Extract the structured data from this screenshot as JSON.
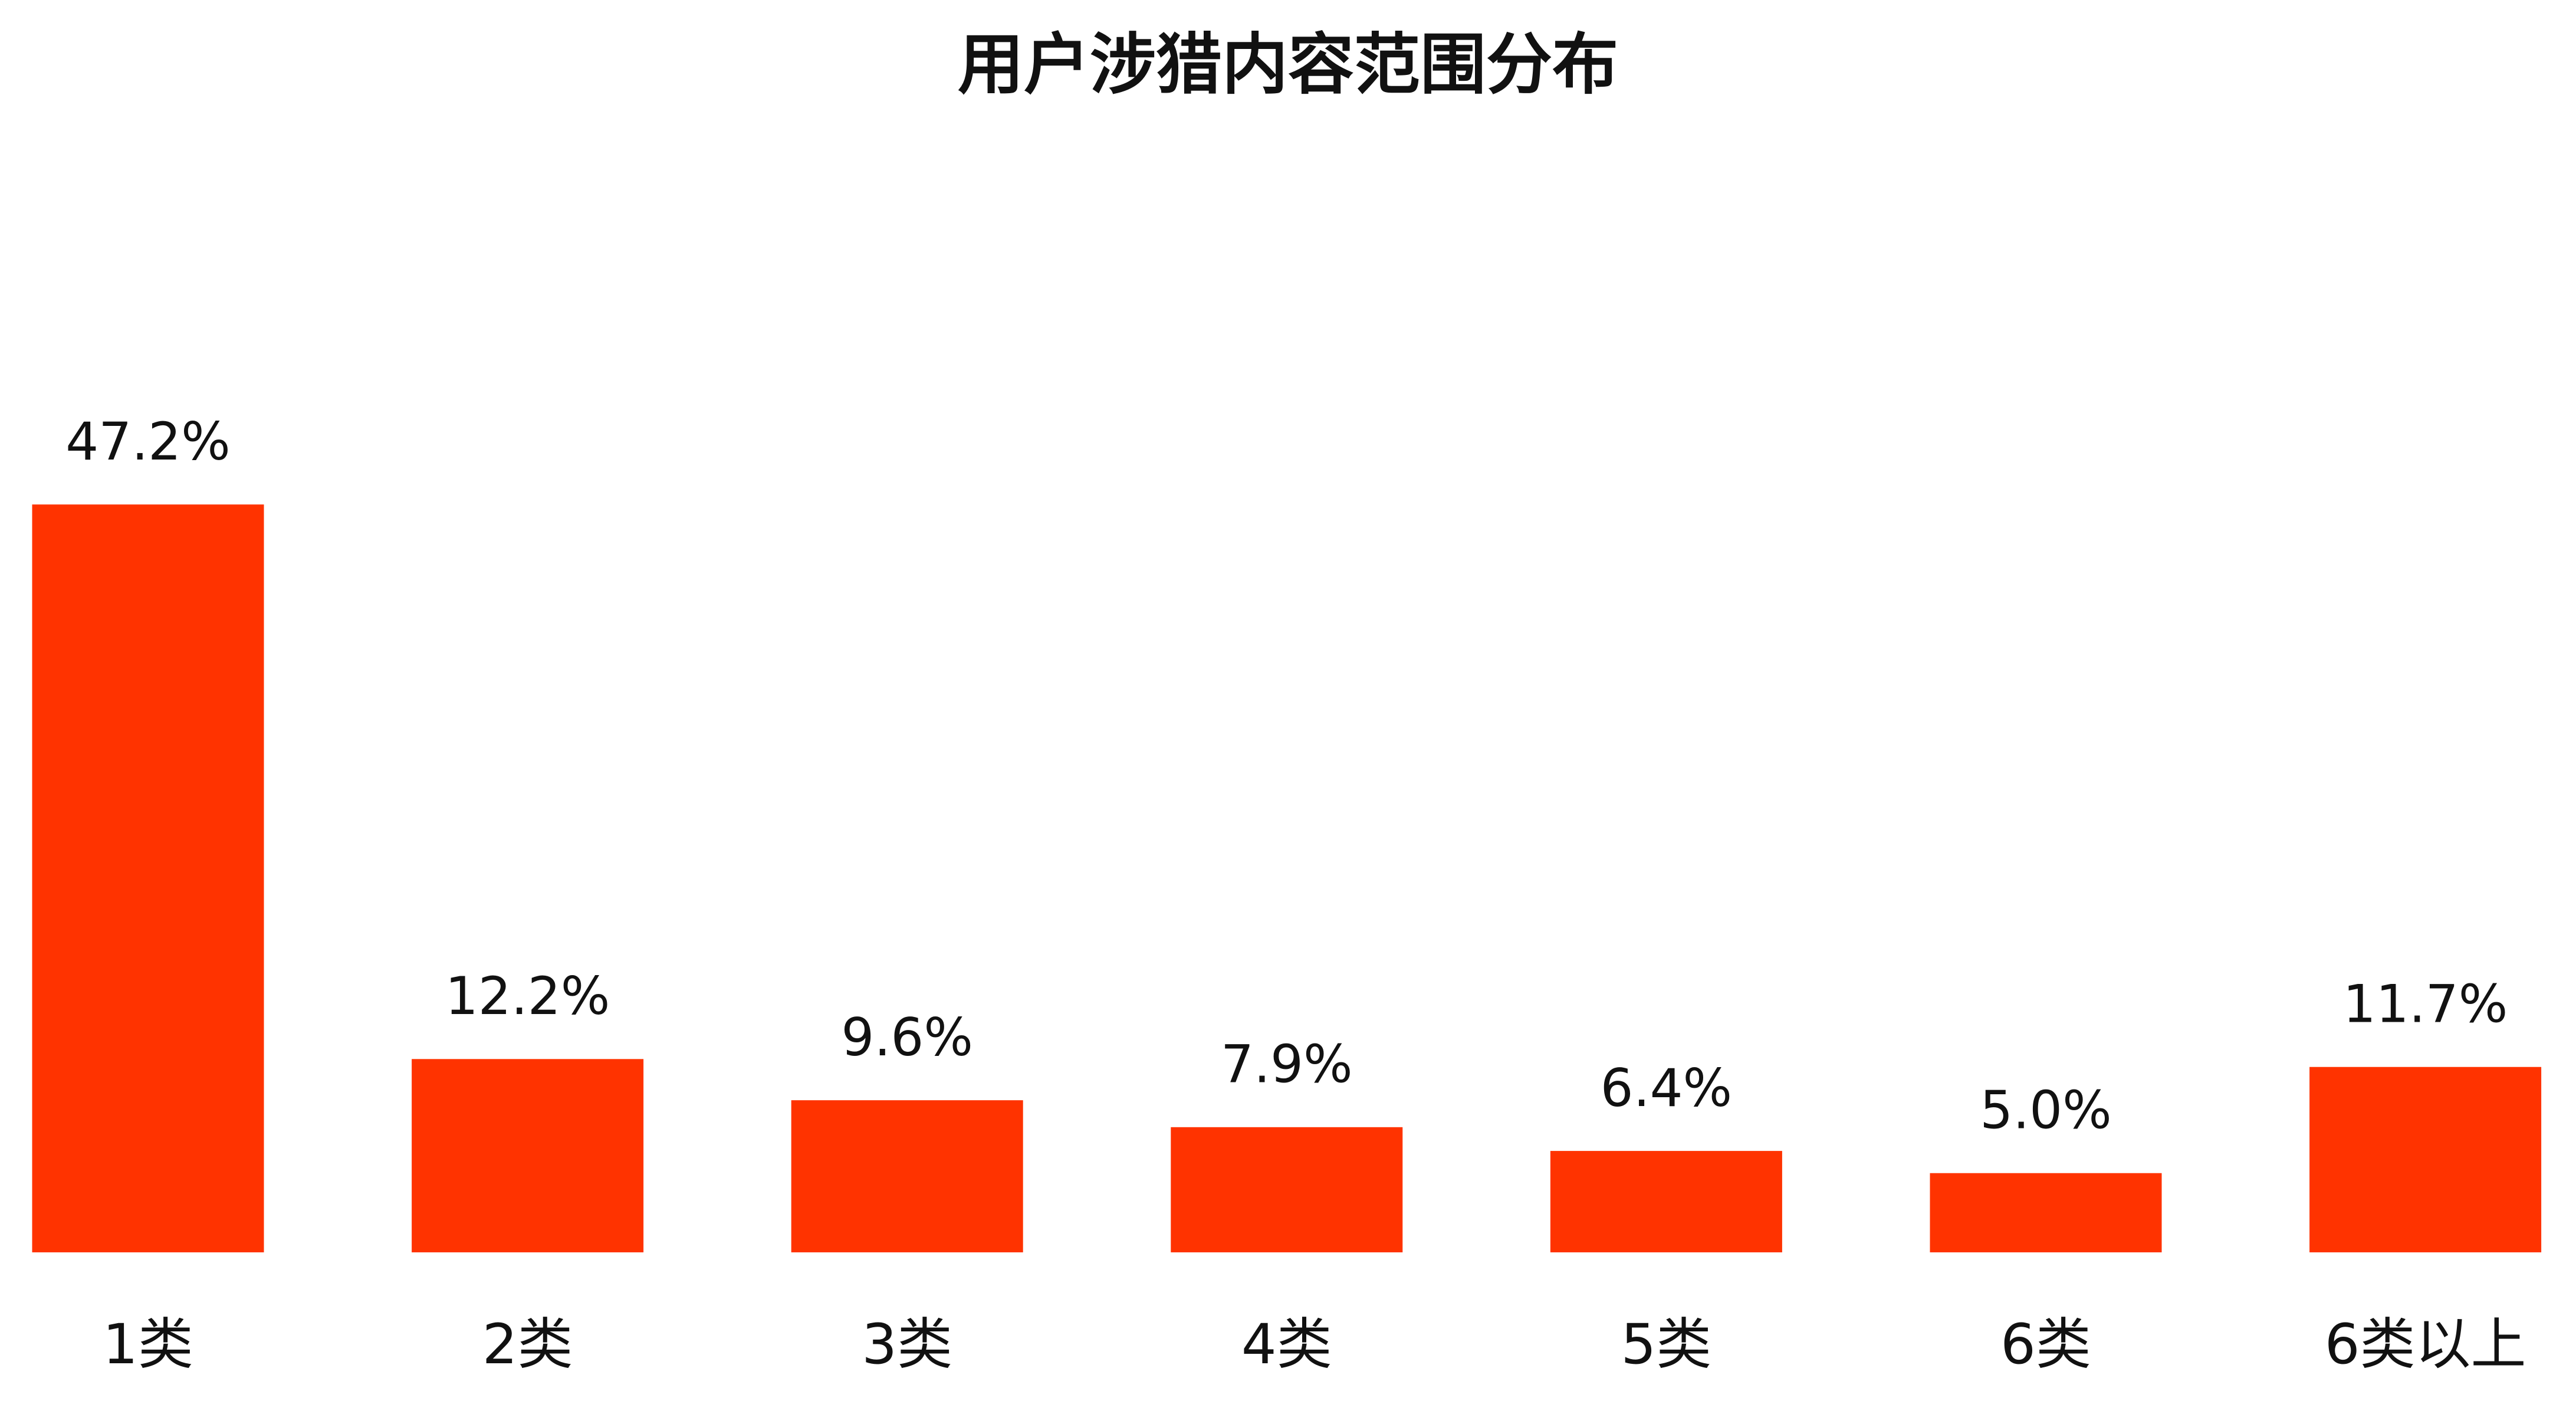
{
  "chart_data": {
    "type": "bar",
    "title": "用户涉猎内容范围分布",
    "categories": [
      "1类",
      "2类",
      "3类",
      "4类",
      "5类",
      "6类",
      "6类以上"
    ],
    "values": [
      47.2,
      12.2,
      9.6,
      7.9,
      6.4,
      5.0,
      11.7
    ],
    "value_labels": [
      "47.2%",
      "12.2%",
      "9.6%",
      "7.9%",
      "6.4%",
      "5.0%",
      "11.7%"
    ],
    "color": "#ff3300"
  }
}
